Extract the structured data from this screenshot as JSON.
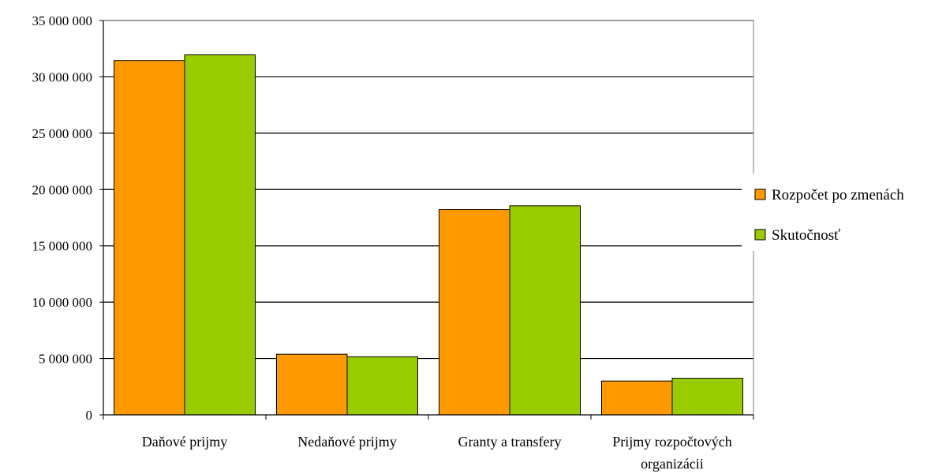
{
  "chart_data": {
    "type": "bar",
    "categories": [
      [
        "Daňové prijmy"
      ],
      [
        "Nedaňové prijmy"
      ],
      [
        "Granty a transfery"
      ],
      [
        "Prijmy rozpočtových",
        "organizácii"
      ]
    ],
    "series": [
      {
        "name": "Rozpočet po zmenách",
        "color": "#FF9900",
        "values": [
          31450000,
          5380000,
          18230000,
          3000000
        ]
      },
      {
        "name": "Skutočnosť",
        "color": "#99CC00",
        "values": [
          31950000,
          5150000,
          18560000,
          3250000
        ]
      }
    ],
    "ylim": [
      0,
      35000000
    ],
    "yticks": [
      0,
      5000000,
      10000000,
      15000000,
      20000000,
      25000000,
      30000000,
      35000000
    ],
    "ytick_labels": [
      "0",
      "5 000 000",
      "10 000 000",
      "15 000 000",
      "20 000 000",
      "25 000 000",
      "30 000 000",
      "35 000 000"
    ],
    "grid": true,
    "legend_position": "right",
    "title": "",
    "xlabel": "",
    "ylabel": ""
  }
}
